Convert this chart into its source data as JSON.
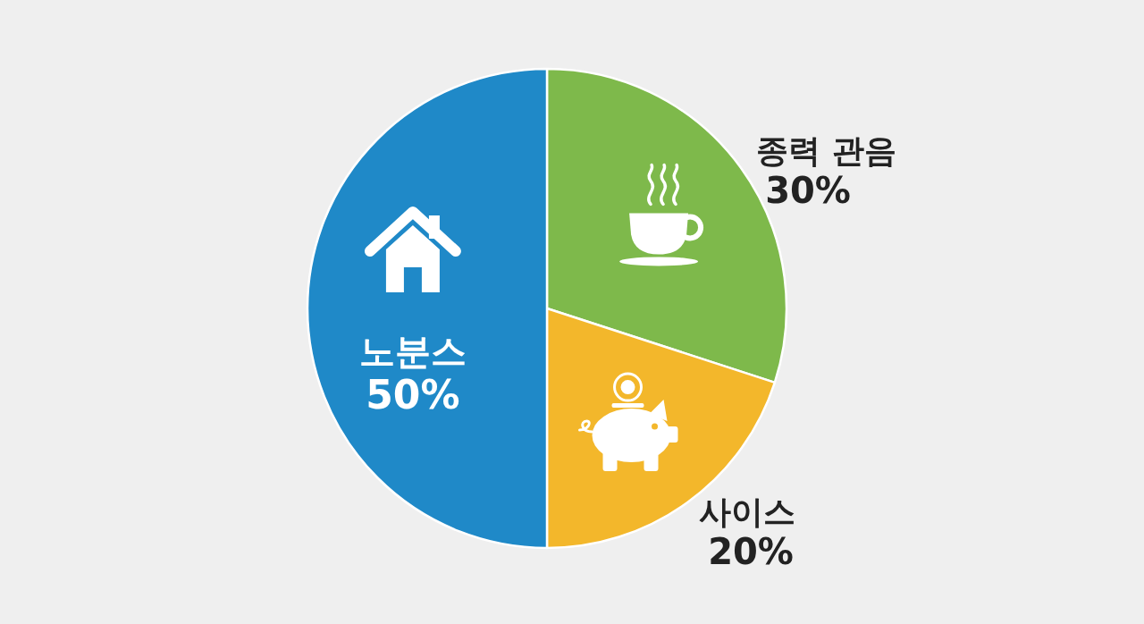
{
  "chart_data": {
    "type": "pie",
    "categories": [
      "종력 관음",
      "사이스",
      "노분스"
    ],
    "values": [
      30,
      20,
      50
    ],
    "colors": [
      "#7eb94b",
      "#f3b72b",
      "#1f89c8"
    ],
    "value_labels": [
      "30%",
      "20%",
      "50%"
    ]
  }
}
